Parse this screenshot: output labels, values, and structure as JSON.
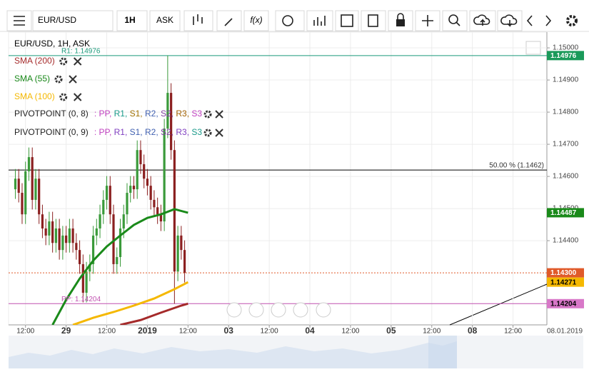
{
  "toolbar": {
    "symbol": "EUR/USD",
    "interval": "1H",
    "side": "ASK",
    "function": "f(x)"
  },
  "legend": {
    "title": "EUR/USD, 1H, ASK",
    "pivots": [
      {
        "name": "PIVOTPOINT (0, 8)",
        "parts": [
          {
            "text": ": PP,",
            "color": "#c040c0"
          },
          {
            "text": " R1,",
            "color": "#1a9a8a"
          },
          {
            "text": " S1,",
            "color": "#a07000"
          },
          {
            "text": " R2,",
            "color": "#4060b0"
          },
          {
            "text": " S2,",
            "color": "#8040a0"
          },
          {
            "text": " R3,",
            "color": "#a06000"
          },
          {
            "text": " S3",
            "color": "#c040c0"
          }
        ]
      },
      {
        "name": "PIVOTPOINT (0, 9)",
        "parts": [
          {
            "text": ": PP,",
            "color": "#c040c0"
          },
          {
            "text": " R1,",
            "color": "#8040c0"
          },
          {
            "text": " S1,",
            "color": "#4060b0"
          },
          {
            "text": " R2,",
            "color": "#4060b0"
          },
          {
            "text": " S2,",
            "color": "#8040a0"
          },
          {
            "text": " R3,",
            "color": "#8040c0"
          },
          {
            "text": " S3",
            "color": "#1a9a8a"
          }
        ]
      }
    ]
  },
  "chart_data": {
    "type": "candlestick",
    "up_color": "#3a9a3a",
    "down_color": "#8b2020",
    "x": [
      -3,
      -2,
      -1,
      0,
      1,
      2,
      3,
      4,
      5,
      6,
      7,
      8,
      9,
      10,
      11,
      12,
      13,
      14,
      15,
      16,
      17,
      18,
      19,
      20,
      21,
      22,
      23,
      24,
      25,
      26,
      27,
      28,
      29,
      30,
      31,
      32,
      33,
      34,
      35,
      36,
      37,
      38,
      39,
      40,
      41,
      42,
      43,
      44,
      45,
      46,
      47
    ],
    "open": [
      1.1456,
      1.14593,
      1.14549,
      1.14482,
      1.14616,
      1.1466,
      1.14527,
      1.14593,
      1.14482,
      1.14438,
      1.14416,
      1.1446,
      1.14393,
      1.14438,
      1.14371,
      1.14416,
      1.14393,
      1.14438,
      1.14393,
      1.14371,
      1.14327,
      1.14238,
      1.14304,
      1.14327,
      1.14416,
      1.14438,
      1.14482,
      1.14527,
      1.14571,
      1.14482,
      1.14327,
      1.14349,
      1.14438,
      1.14482,
      1.14549,
      1.14571,
      1.1456,
      1.14682,
      1.14638,
      1.14593,
      1.14571,
      1.14527,
      1.14504,
      1.14482,
      1.1446,
      1.14749,
      1.1486,
      1.14682,
      1.14304,
      1.14416,
      1.14371
    ],
    "high": [
      1.14623,
      1.14623,
      1.14579,
      1.14646,
      1.1469,
      1.1469,
      1.14623,
      1.14623,
      1.14512,
      1.14468,
      1.1449,
      1.1449,
      1.14468,
      1.14468,
      1.14446,
      1.14446,
      1.14468,
      1.14468,
      1.14423,
      1.14401,
      1.14357,
      1.14334,
      1.14357,
      1.14446,
      1.14468,
      1.14512,
      1.14557,
      1.14601,
      1.14601,
      1.14512,
      1.14379,
      1.14468,
      1.14512,
      1.14579,
      1.14601,
      1.14601,
      1.14712,
      1.14712,
      1.14668,
      1.14623,
      1.14601,
      1.14557,
      1.14534,
      1.14512,
      1.14779,
      1.14976,
      1.1489,
      1.14712,
      1.14446,
      1.14446,
      1.14401
    ],
    "low": [
      1.1453,
      1.14519,
      1.14452,
      1.14452,
      1.14586,
      1.14497,
      1.14497,
      1.14452,
      1.14408,
      1.14386,
      1.14386,
      1.14363,
      1.14363,
      1.14341,
      1.14341,
      1.14363,
      1.14363,
      1.14363,
      1.14341,
      1.14297,
      1.14208,
      1.14208,
      1.14274,
      1.14297,
      1.14386,
      1.14408,
      1.14452,
      1.14497,
      1.14452,
      1.14297,
      1.14297,
      1.14319,
      1.14408,
      1.14452,
      1.14519,
      1.1453,
      1.1453,
      1.14608,
      1.14563,
      1.14541,
      1.14497,
      1.14474,
      1.14452,
      1.1443,
      1.1443,
      1.14719,
      1.14652,
      1.14204,
      1.14274,
      1.14341,
      1.1427
    ],
    "close": [
      1.14593,
      1.14549,
      1.14482,
      1.14616,
      1.1466,
      1.14527,
      1.14593,
      1.14482,
      1.14438,
      1.14416,
      1.1446,
      1.14393,
      1.14438,
      1.14371,
      1.14416,
      1.14393,
      1.14438,
      1.14393,
      1.14371,
      1.14327,
      1.14238,
      1.14304,
      1.14327,
      1.14416,
      1.14438,
      1.14482,
      1.14527,
      1.14571,
      1.14482,
      1.14327,
      1.14349,
      1.14438,
      1.14482,
      1.14549,
      1.14571,
      1.1456,
      1.14682,
      1.14638,
      1.14593,
      1.14571,
      1.14527,
      1.14504,
      1.14482,
      1.1446,
      1.14749,
      1.1486,
      1.14682,
      1.14304,
      1.14416,
      1.14371,
      1.143
    ],
    "series": [
      {
        "name": "SMA (200)",
        "color": "#a52a2a",
        "x": [
          28,
          34,
          40,
          46,
          48
        ],
        "values": [
          1.14138,
          1.14153,
          1.14176,
          1.14198,
          1.14204
        ]
      },
      {
        "name": "SMA (55)",
        "color": "#1a8a1a",
        "x": [
          8,
          12,
          16,
          20,
          24,
          28,
          32,
          36,
          40,
          44,
          48
        ],
        "values": [
          1.14138,
          1.14216,
          1.14282,
          1.14338,
          1.14382,
          1.14416,
          1.14449,
          1.14471,
          1.14482,
          1.14498,
          1.14487
        ]
      },
      {
        "name": "SMA (100)",
        "color": "#f5b800",
        "x": [
          14,
          20,
          26,
          32,
          38,
          44,
          48
        ],
        "values": [
          1.14138,
          1.1416,
          1.14178,
          1.14198,
          1.1422,
          1.14249,
          1.14271
        ]
      }
    ],
    "levels": [
      {
        "label": "R1: 1.14976",
        "value": 1.14976,
        "color": "#1a9a7a",
        "label_side": "left"
      },
      {
        "label": "50.00 % (1.1462)",
        "value": 1.1462,
        "color": "#000000",
        "label_side": "right"
      },
      {
        "label": "PP: 1.14204",
        "value": 1.14204,
        "color": "#c050b0",
        "label_side": "left"
      }
    ],
    "price_tags": [
      {
        "value": 1.14976,
        "label": "1.14976",
        "color": "#1a9a5a",
        "text_color": "#ffffff"
      },
      {
        "value": 1.14487,
        "label": "1.14487",
        "color": "#1a8a1a",
        "text_color": "#ffffff"
      },
      {
        "value": 1.143,
        "label": "1.14300",
        "color": "#e05a2a",
        "text_color": "#ffffff",
        "line": "dashed"
      },
      {
        "value": 1.14271,
        "label": "1.14271",
        "color": "#f5b800",
        "text_color": "#000000"
      },
      {
        "value": 1.14204,
        "label": "1.14204",
        "color": "#d878c8",
        "text_color": "#000000"
      }
    ],
    "xlim": [
      -5,
      154
    ],
    "ylim": [
      1.14138,
      1.15049
    ],
    "xticks": [
      {
        "value": 0,
        "label": "12:00"
      },
      {
        "value": 12,
        "label": "29"
      },
      {
        "value": 24,
        "label": "12:00"
      },
      {
        "value": 36,
        "label": "2019"
      },
      {
        "value": 48,
        "label": "12:00"
      },
      {
        "value": 60,
        "label": "03"
      },
      {
        "value": 72,
        "label": "12:00"
      },
      {
        "value": 84,
        "label": "04"
      },
      {
        "value": 96,
        "label": "12:00"
      },
      {
        "value": 108,
        "label": "05"
      },
      {
        "value": 120,
        "label": "12:00"
      },
      {
        "value": 132,
        "label": "08"
      },
      {
        "value": 144,
        "label": "12:00"
      }
    ],
    "yticks": [
      {
        "value": 1.144,
        "label": "1.14400"
      },
      {
        "value": 1.145,
        "label": "1.14500"
      },
      {
        "value": 1.146,
        "label": "1.14600"
      },
      {
        "value": 1.147,
        "label": "1.14700"
      },
      {
        "value": 1.148,
        "label": "1.14800"
      },
      {
        "value": 1.149,
        "label": "1.14900"
      },
      {
        "value": 1.15,
        "label": "1.15000"
      }
    ],
    "cursor_label": "08.01.2019",
    "grid": true
  }
}
